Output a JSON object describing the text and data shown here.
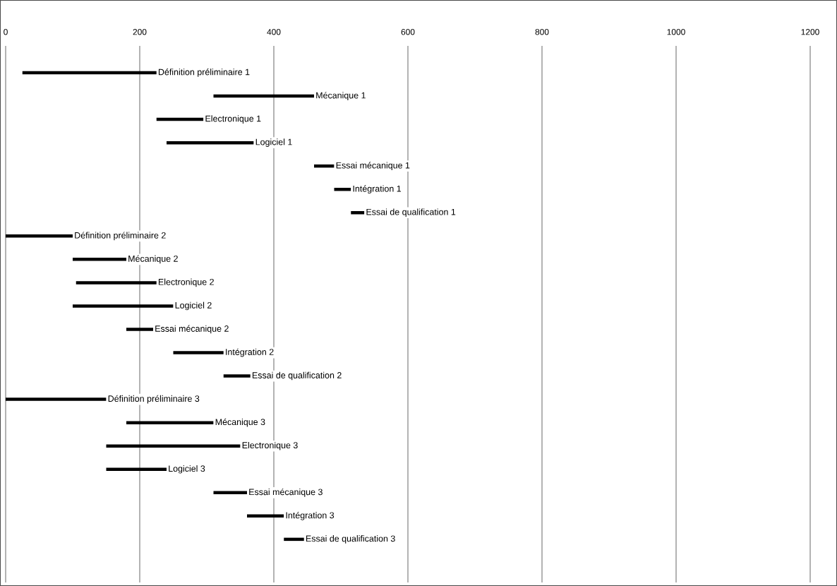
{
  "chart_data": {
    "type": "bar",
    "orientation": "horizontal",
    "grid": "x",
    "color": "#000000",
    "xlim": [
      0,
      1200
    ],
    "xticks": [
      0,
      200,
      400,
      600,
      800,
      1000,
      1200
    ],
    "categories": [
      "Définition préliminaire 1",
      "Mécanique 1",
      "Electronique 1",
      "Logiciel 1",
      "Essai mécanique 1",
      "Intégration 1",
      "Essai de qualification 1",
      "Définition préliminaire 2",
      "Mécanique 2",
      "Electronique 2",
      "Logiciel 2",
      "Essai mécanique 2",
      "Intégration 2",
      "Essai de qualification 2",
      "Définition préliminaire 3",
      "Mécanique 3",
      "Electronique 3",
      "Logiciel 3",
      "Essai mécanique 3",
      "Intégration 3",
      "Essai de qualification 3"
    ],
    "base": [
      25,
      310,
      225,
      240,
      460,
      490,
      515,
      0,
      100,
      105,
      100,
      180,
      250,
      325,
      0,
      180,
      150,
      150,
      310,
      360,
      415
    ],
    "values": [
      200,
      150,
      70,
      130,
      30,
      25,
      20,
      100,
      80,
      120,
      150,
      40,
      75,
      40,
      150,
      130,
      200,
      90,
      50,
      55,
      30
    ]
  }
}
